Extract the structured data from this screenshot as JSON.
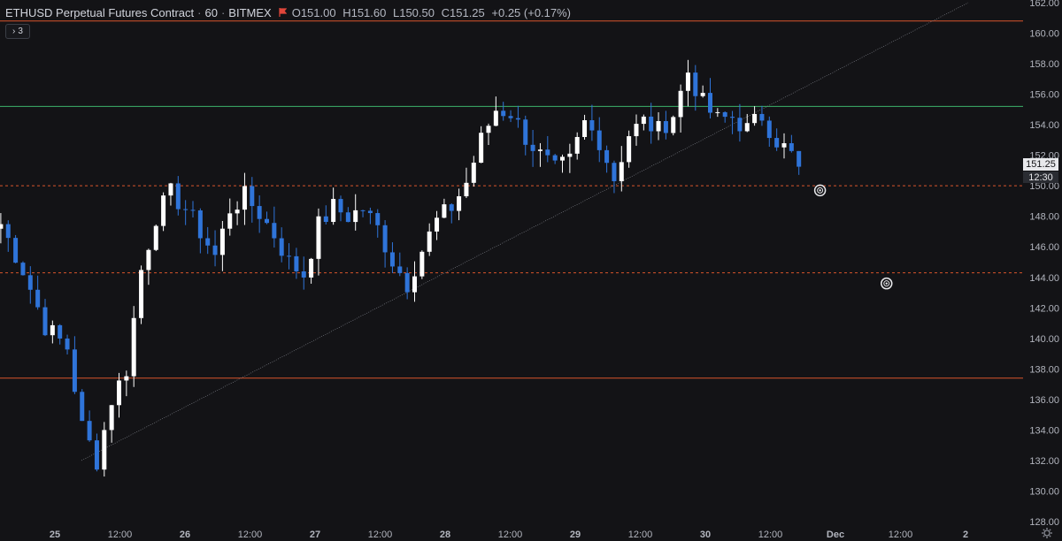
{
  "header": {
    "symbol": "ETHUSD Perpetual Futures Contract",
    "interval": "60",
    "exchange": "BITMEX",
    "open": "O151.00",
    "high": "H151.60",
    "low": "L150.50",
    "close": "C151.25",
    "change": "+0.25 (+0.17%)",
    "flag_icon": "red-flag-icon",
    "separator": "·"
  },
  "collapse_button": {
    "icon": "chevron-right-icon",
    "count": "3"
  },
  "last_price_label": "151.25",
  "countdown_label": "12:30",
  "settings_icon": "gear-icon",
  "colors": {
    "background": "#131316",
    "up_candle": "#ffffff",
    "down_candle": "#2f74d9",
    "orange_line": "#d9542b",
    "green_line": "#3bb36a",
    "trendline": "#8a8d96",
    "axis_text": "#b2b5be"
  },
  "chart_data": {
    "type": "candlestick",
    "y_axis": {
      "min": 128,
      "max": 162,
      "ticks": [
        "128.00",
        "130.00",
        "132.00",
        "134.00",
        "136.00",
        "138.00",
        "140.00",
        "142.00",
        "144.00",
        "146.00",
        "148.00",
        "150.00",
        "152.00",
        "154.00",
        "156.00",
        "158.00",
        "160.00",
        "162.00"
      ]
    },
    "x_axis": {
      "ticks": [
        "25",
        "12:00",
        "26",
        "12:00",
        "27",
        "12:00",
        "28",
        "12:00",
        "29",
        "12:00",
        "30",
        "12:00",
        "Dec",
        "12:00",
        "2"
      ]
    },
    "horizontal_levels": [
      {
        "price": 160.8,
        "style": "solid",
        "color": "orange"
      },
      {
        "price": 155.2,
        "style": "solid",
        "color": "green"
      },
      {
        "price": 150.0,
        "style": "dashed",
        "color": "orange"
      },
      {
        "price": 144.3,
        "style": "dashed",
        "color": "orange"
      },
      {
        "price": 137.4,
        "style": "solid",
        "color": "orange"
      }
    ],
    "trendline": {
      "from": {
        "bar": 0,
        "price": 132.0
      },
      "to": {
        "bar": 120,
        "price": 162.0
      }
    },
    "markers": [
      {
        "bar": 96,
        "price": 149.7
      },
      {
        "bar": 105,
        "price": 143.6
      }
    ],
    "candles_path": [
      [
        0,
        147.5
      ],
      [
        3,
        144.5
      ],
      [
        6,
        140.8
      ],
      [
        9,
        139.4
      ],
      [
        11,
        134.2
      ],
      [
        13,
        132.0
      ],
      [
        15,
        136.0
      ],
      [
        17,
        138.0
      ],
      [
        19,
        144.5
      ],
      [
        21,
        148.0
      ],
      [
        23,
        149.5
      ],
      [
        25,
        148.5
      ],
      [
        27,
        147.0
      ],
      [
        29,
        145.4
      ],
      [
        31,
        148.5
      ],
      [
        33,
        149.3
      ],
      [
        35,
        148.2
      ],
      [
        37,
        146.8
      ],
      [
        39,
        145.0
      ],
      [
        41,
        144.2
      ],
      [
        43,
        147.4
      ],
      [
        45,
        148.6
      ],
      [
        47,
        148.0
      ],
      [
        49,
        148.5
      ],
      [
        51,
        147.2
      ],
      [
        53,
        145.1
      ],
      [
        55,
        143.6
      ],
      [
        57,
        145.8
      ],
      [
        59,
        147.7
      ],
      [
        61,
        148.6
      ],
      [
        63,
        150.2
      ],
      [
        65,
        153.0
      ],
      [
        67,
        155.0
      ],
      [
        69,
        154.8
      ],
      [
        71,
        153.2
      ],
      [
        73,
        152.0
      ],
      [
        75,
        151.0
      ],
      [
        77,
        151.6
      ],
      [
        79,
        154.1
      ],
      [
        81,
        153.0
      ],
      [
        83,
        150.5
      ],
      [
        85,
        153.4
      ],
      [
        87,
        154.2
      ],
      [
        89,
        153.6
      ],
      [
        91,
        154.7
      ],
      [
        93,
        157.5
      ],
      [
        95,
        155.4
      ],
      [
        97,
        154.3
      ],
      [
        99,
        154.5
      ],
      [
        101,
        153.7
      ],
      [
        103,
        154.6
      ],
      [
        105,
        153.0
      ],
      [
        107,
        152.0
      ],
      [
        108,
        151.25
      ]
    ]
  }
}
